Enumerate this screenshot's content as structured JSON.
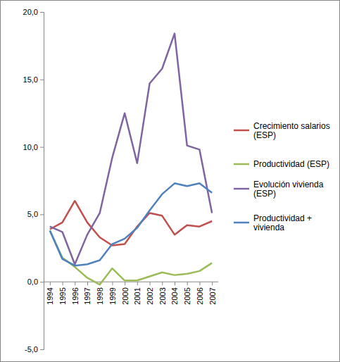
{
  "chart_data": {
    "type": "line",
    "categories": [
      "1994",
      "1995",
      "1996",
      "1997",
      "1998",
      "1999",
      "2000",
      "2001",
      "2002",
      "2003",
      "2004",
      "2005",
      "2006",
      "2007"
    ],
    "series": [
      {
        "name": "Crecimiento salarios (ESP)",
        "color": "#c0504d",
        "values": [
          3.9,
          4.4,
          6.0,
          4.4,
          3.3,
          2.7,
          2.8,
          4.1,
          5.1,
          4.9,
          3.5,
          4.2,
          4.1,
          4.5
        ]
      },
      {
        "name": "Productividad (ESP)",
        "color": "#9bbb59",
        "values": [
          3.8,
          1.8,
          1.1,
          0.3,
          -0.2,
          1.0,
          0.1,
          0.1,
          0.4,
          0.7,
          0.5,
          0.6,
          0.8,
          1.4
        ]
      },
      {
        "name": "Evolución vivienda (ESP)",
        "color": "#8064a2",
        "values": [
          4.1,
          3.7,
          1.3,
          3.5,
          5.1,
          9.2,
          12.5,
          8.8,
          14.7,
          15.8,
          18.4,
          10.1,
          9.8,
          5.1
        ]
      },
      {
        "name": "Productividad + vivienda",
        "color": "#4f81bd",
        "values": [
          3.8,
          1.7,
          1.2,
          1.3,
          1.6,
          2.8,
          3.2,
          4.0,
          5.3,
          6.5,
          7.3,
          7.1,
          7.3,
          6.6
        ]
      }
    ],
    "ylim": [
      -5,
      20
    ],
    "yticks": [
      {
        "value": -5,
        "label": "-5,0"
      },
      {
        "value": 0,
        "label": "0,0"
      },
      {
        "value": 5,
        "label": "5,0"
      },
      {
        "value": 10,
        "label": "10,0"
      },
      {
        "value": 15,
        "label": "15,0"
      },
      {
        "value": 20,
        "label": "20,0"
      }
    ],
    "grid": false,
    "legend": "right"
  }
}
